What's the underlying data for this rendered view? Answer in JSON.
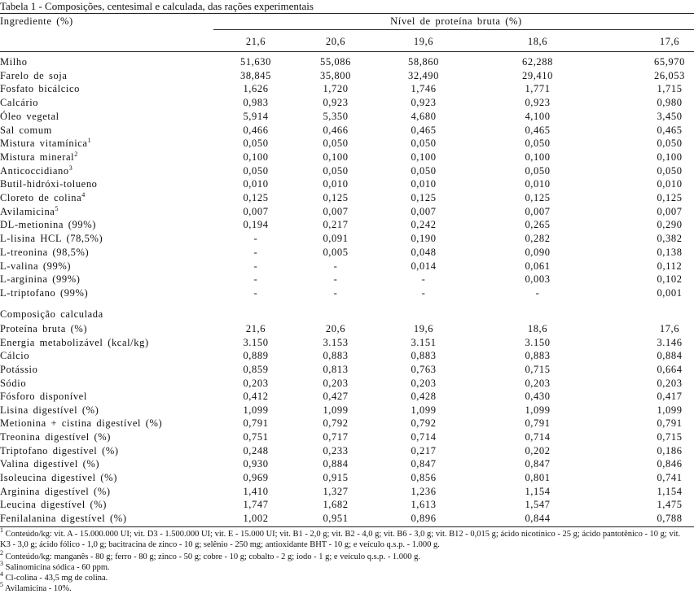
{
  "title": "Tabela 1 - Composições, centesimal e calculada, das rações experimentais",
  "table": {
    "header": {
      "first": "Ingrediente (%)",
      "group": "Nível de proteína bruta (%)",
      "levels": [
        "21,6",
        "20,6",
        "19,6",
        "18,6",
        "17,6"
      ]
    },
    "ingredients": [
      {
        "name": "Milho",
        "values": [
          "51,630",
          "55,086",
          "58,860",
          "62,288",
          "65,970"
        ]
      },
      {
        "name": "Farelo de soja",
        "values": [
          "38,845",
          "35,800",
          "32,490",
          "29,410",
          "26,053"
        ]
      },
      {
        "name": "Fosfato bicálcico",
        "values": [
          "1,626",
          "1,720",
          "1,746",
          "1,771",
          "1,715"
        ]
      },
      {
        "name": "Calcário",
        "values": [
          "0,983",
          "0,923",
          "0,923",
          "0,923",
          "0,980"
        ]
      },
      {
        "name": "Óleo vegetal",
        "values": [
          "5,914",
          "5,350",
          "4,680",
          "4,100",
          "3,450"
        ]
      },
      {
        "name": "Sal comum",
        "values": [
          "0,466",
          "0,466",
          "0,465",
          "0,465",
          "0,465"
        ]
      },
      {
        "name": "Mistura vitamínica",
        "note": "1",
        "values": [
          "0,050",
          "0,050",
          "0,050",
          "0,050",
          "0,050"
        ]
      },
      {
        "name": "Mistura mineral",
        "note": "2",
        "values": [
          "0,100",
          "0,100",
          "0,100",
          "0,100",
          "0,100"
        ]
      },
      {
        "name": "Anticoccidiano",
        "note": "3",
        "values": [
          "0,050",
          "0,050",
          "0,050",
          "0,050",
          "0,050"
        ]
      },
      {
        "name": "Butil-hidróxi-tolueno",
        "values": [
          "0,010",
          "0,010",
          "0,010",
          "0,010",
          "0,010"
        ]
      },
      {
        "name": "Cloreto de colina",
        "note": "4",
        "values": [
          "0,125",
          "0,125",
          "0,125",
          "0,125",
          "0,125"
        ]
      },
      {
        "name": "Avilamicina",
        "note": "5",
        "values": [
          "0,007",
          "0,007",
          "0,007",
          "0,007",
          "0,007"
        ]
      },
      {
        "name": "DL-metionina (99%)",
        "values": [
          "0,194",
          "0,217",
          "0,242",
          "0,265",
          "0,290"
        ]
      },
      {
        "name": "L-lisina HCL (78,5%)",
        "values": [
          "-",
          "0,091",
          "0,190",
          "0,282",
          "0,382"
        ]
      },
      {
        "name": "L-treonina (98,5%)",
        "values": [
          "-",
          "0,005",
          "0,048",
          "0,090",
          "0,138"
        ]
      },
      {
        "name": "L-valina (99%)",
        "values": [
          "-",
          "-",
          "0,014",
          "0,061",
          "0,112"
        ]
      },
      {
        "name": "L-arginina (99%)",
        "values": [
          "-",
          "-",
          "-",
          "0,003",
          "0,102"
        ]
      },
      {
        "name": "L-triptofano (99%)",
        "values": [
          "-",
          "-",
          "-",
          "-",
          "0,001"
        ]
      }
    ],
    "section": "Composição calculada",
    "calculated": [
      {
        "name": "Proteína bruta (%)",
        "values": [
          "21,6",
          "20,6",
          "19,6",
          "18,6",
          "17,6"
        ]
      },
      {
        "name": "Energia metabolizável (kcal/kg)",
        "values": [
          "3.150",
          "3.153",
          "3.151",
          "3.150",
          "3.146"
        ]
      },
      {
        "name": "Cálcio",
        "values": [
          "0,889",
          "0,883",
          "0,883",
          "0,883",
          "0,884"
        ]
      },
      {
        "name": "Potássio",
        "values": [
          "0,859",
          "0,813",
          "0,763",
          "0,715",
          "0,664"
        ]
      },
      {
        "name": "Sódio",
        "values": [
          "0,203",
          "0,203",
          "0,203",
          "0,203",
          "0,203"
        ]
      },
      {
        "name": "Fósforo disponível",
        "values": [
          "0,412",
          "0,427",
          "0,428",
          "0,430",
          "0,417"
        ]
      },
      {
        "name": "Lisina digestível (%)",
        "values": [
          "1,099",
          "1,099",
          "1,099",
          "1,099",
          "1,099"
        ]
      },
      {
        "name": "Metionina + cistina digestível (%)",
        "values": [
          "0,791",
          "0,792",
          "0,792",
          "0,791",
          "0,791"
        ]
      },
      {
        "name": "Treonina digestível (%)",
        "values": [
          "0,751",
          "0,717",
          "0,714",
          "0,714",
          "0,715"
        ]
      },
      {
        "name": "Triptofano digestível (%)",
        "values": [
          "0,248",
          "0,233",
          "0,217",
          "0,202",
          "0,186"
        ]
      },
      {
        "name": "Valina digestível (%)",
        "values": [
          "0,930",
          "0,884",
          "0,847",
          "0,847",
          "0,846"
        ]
      },
      {
        "name": "Isoleucina digestível (%)",
        "values": [
          "0,969",
          "0,915",
          "0,856",
          "0,801",
          "0,741"
        ]
      },
      {
        "name": "Arginina digestível (%)",
        "values": [
          "1,410",
          "1,327",
          "1,236",
          "1,154",
          "1,154"
        ]
      },
      {
        "name": "Leucina digestível (%)",
        "values": [
          "1,747",
          "1,682",
          "1,613",
          "1,547",
          "1,475"
        ]
      },
      {
        "name": "Fenilalanina digestível (%)",
        "values": [
          "1,002",
          "0,951",
          "0,896",
          "0,844",
          "0,788"
        ]
      }
    ]
  },
  "footnotes": [
    {
      "mark": "1",
      "text": "Conteúdo/kg: vit. A - 15.000.000 UI; vit. D3 - 1.500.000 UI; vit. E - 15.000 UI; vit. B1 - 2,0 g; vit. B2 - 4,0 g; vit. B6 - 3,0 g; vit. B12 - 0,015 g; ácido nicotínico - 25 g; ácido pantotênico - 10 g; vit. K3 - 3,0 g; ácido fólico - 1,0 g; bacitracina de zinco - 10 g; selênio - 250 mg; antioxidante BHT - 10 g; e veículo q.s.p. - 1.000 g."
    },
    {
      "mark": "2",
      "text": "Conteúdo/kg: manganês - 80 g; ferro - 80 g; zinco - 50 g; cobre - 10 g; cobalto - 2 g; iodo - 1 g; e veículo q.s.p. - 1.000 g."
    },
    {
      "mark": "3",
      "text": "Salinomicina sódica - 60 ppm."
    },
    {
      "mark": "4",
      "text": "Cl-colina - 43,5 mg de colina."
    },
    {
      "mark": "5",
      "text": "Avilamicina - 10%."
    }
  ]
}
